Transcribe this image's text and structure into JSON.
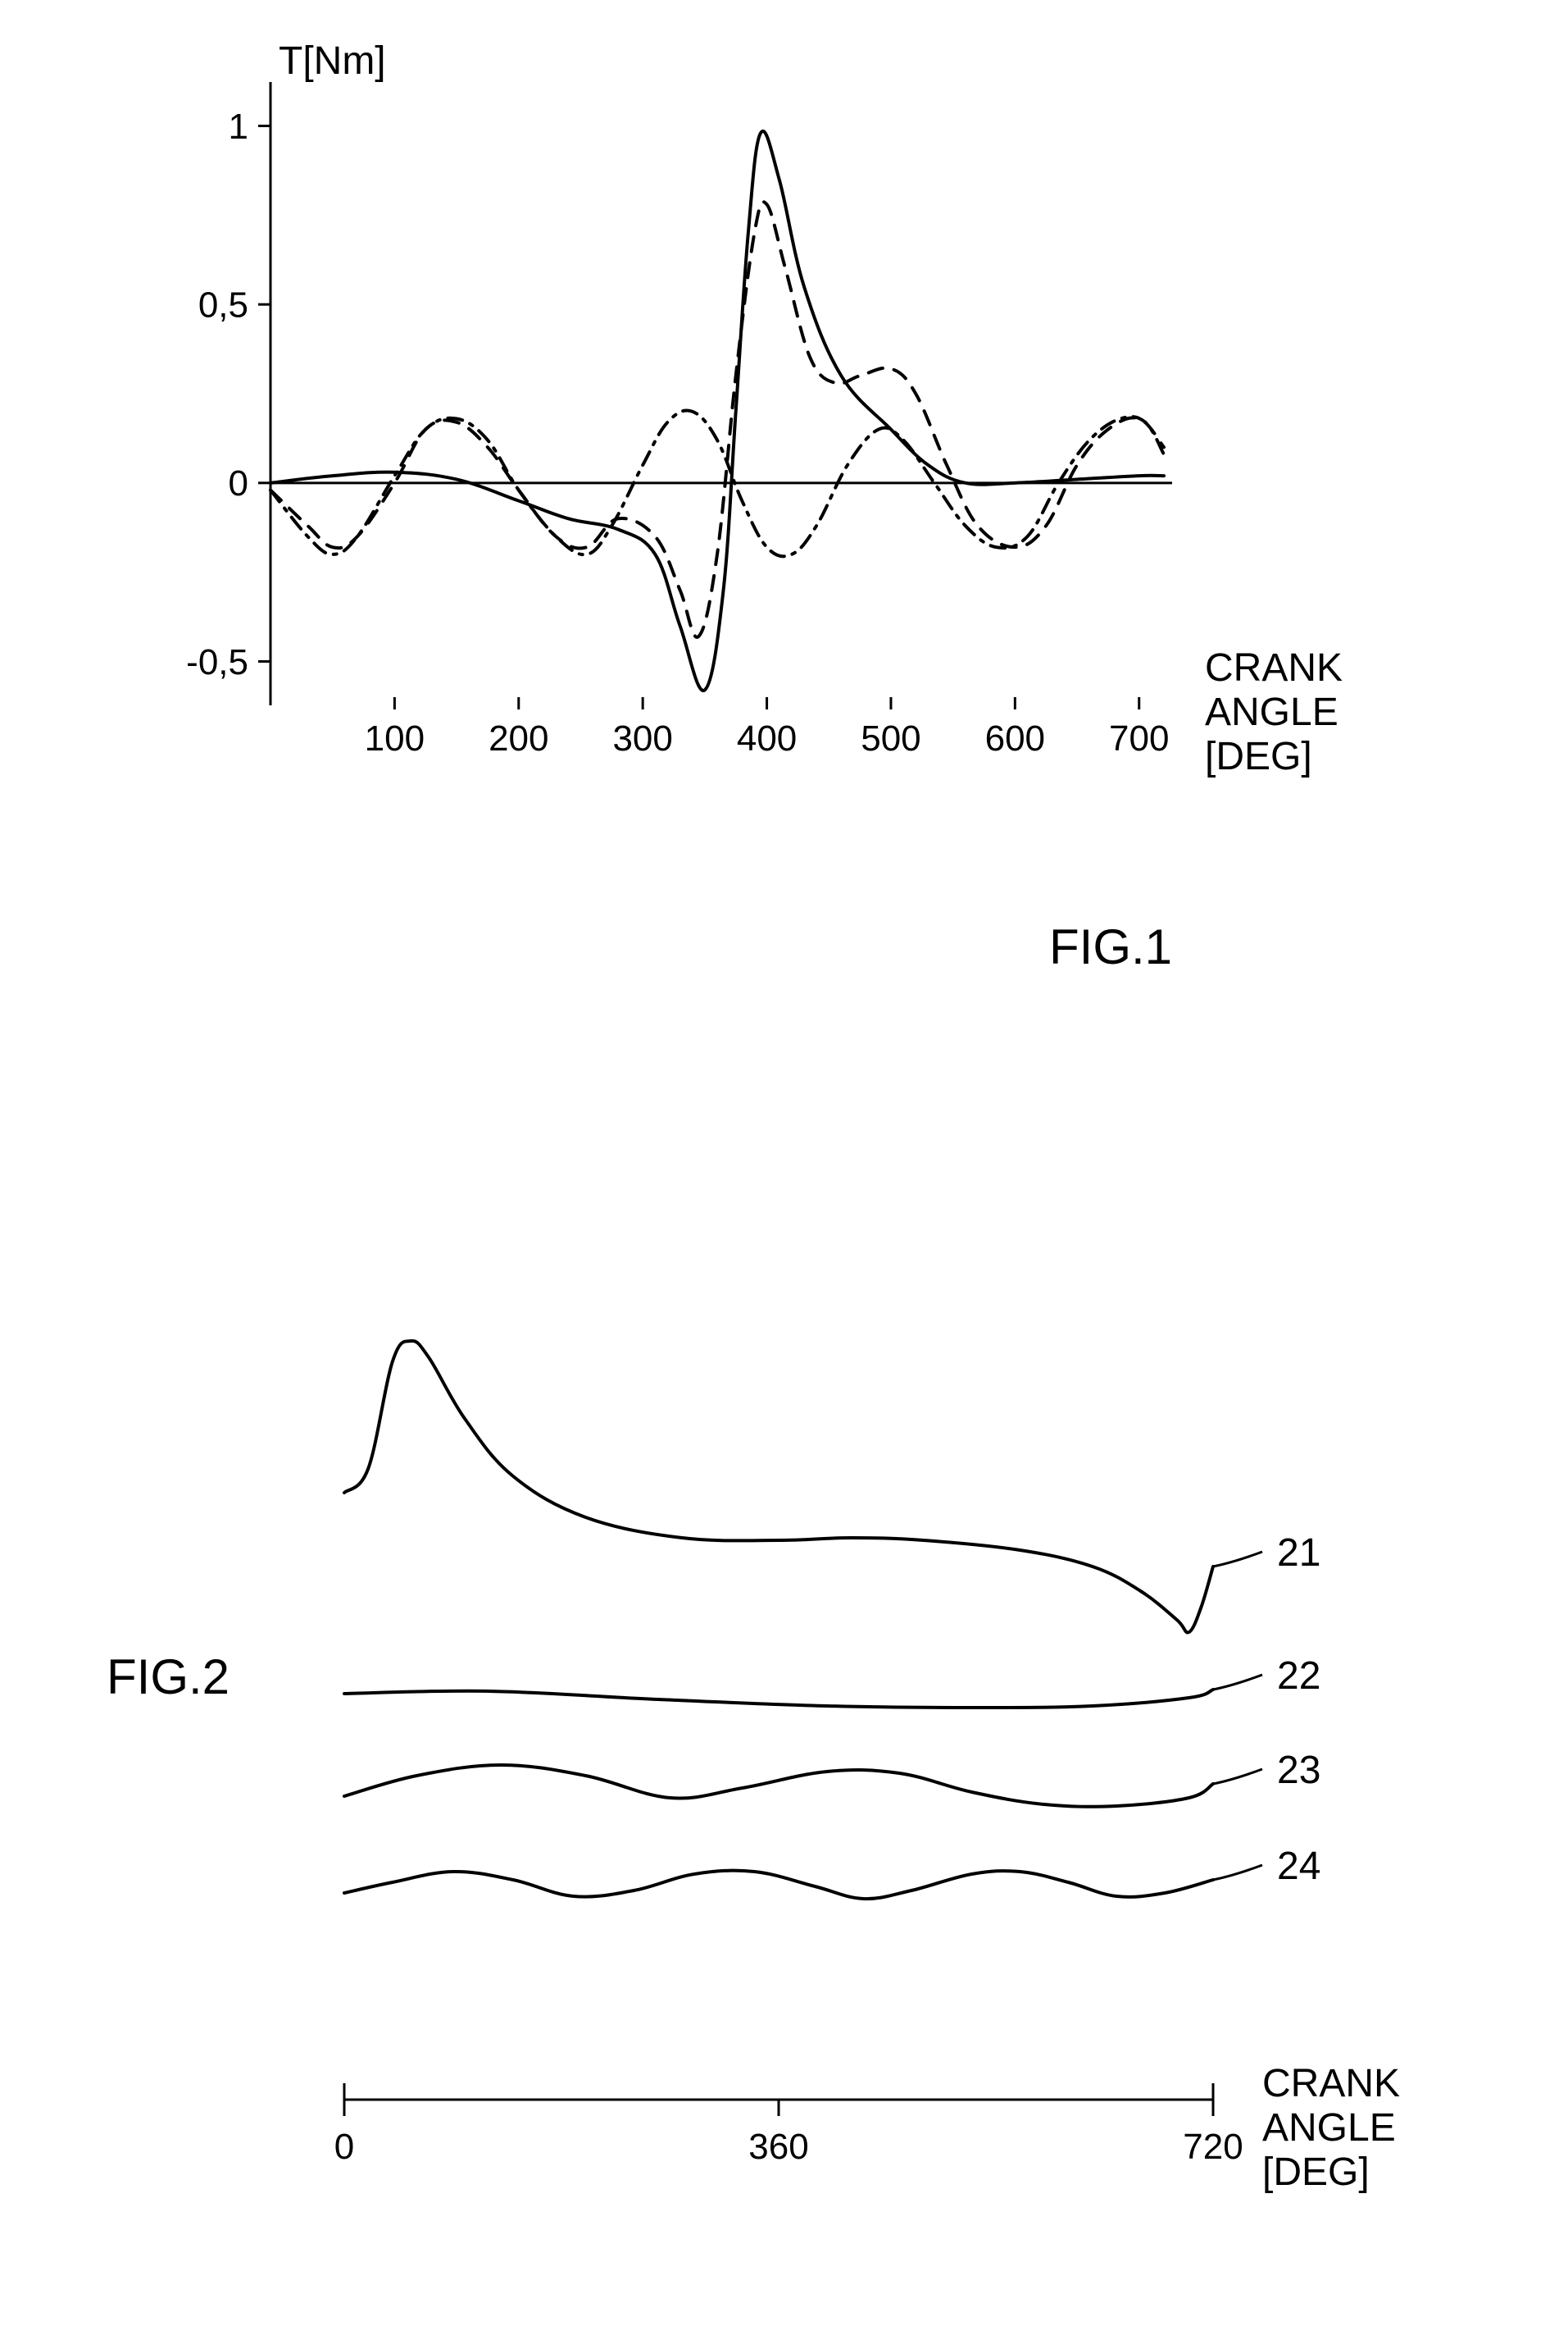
{
  "figure1": {
    "caption": "FIG.1",
    "caption_fontsize": 60,
    "y_axis_label": "T[Nm]",
    "x_axis_label_lines": [
      "CRANK",
      "ANGLE",
      "[DEG]"
    ],
    "label_fontsize": 48,
    "tick_fontsize": 44,
    "x_ticks": [
      100,
      200,
      300,
      400,
      500,
      600,
      700
    ],
    "y_ticks": [
      -0.5,
      0,
      0.5,
      1
    ],
    "y_tick_labels": [
      "-0,5",
      "0",
      "0,5",
      "1"
    ],
    "xlim": [
      0,
      720
    ],
    "ylim": [
      -0.6,
      1.1
    ],
    "line_color": "#000000",
    "line_width": 4,
    "axis_width": 3,
    "tick_length": 15,
    "series": {
      "solid": {
        "dash": "none",
        "points": [
          [
            0,
            0
          ],
          [
            50,
            0.02
          ],
          [
            100,
            0.03
          ],
          [
            150,
            0.01
          ],
          [
            200,
            -0.05
          ],
          [
            240,
            -0.1
          ],
          [
            280,
            -0.13
          ],
          [
            310,
            -0.2
          ],
          [
            330,
            -0.4
          ],
          [
            350,
            -0.58
          ],
          [
            365,
            -0.3
          ],
          [
            375,
            0.2
          ],
          [
            385,
            0.7
          ],
          [
            395,
            0.98
          ],
          [
            410,
            0.85
          ],
          [
            430,
            0.55
          ],
          [
            460,
            0.3
          ],
          [
            500,
            0.15
          ],
          [
            530,
            0.05
          ],
          [
            560,
            0.0
          ],
          [
            600,
            0.0
          ],
          [
            650,
            0.01
          ],
          [
            700,
            0.02
          ],
          [
            720,
            0.02
          ]
        ]
      },
      "dashed": {
        "dash": "18,14",
        "points": [
          [
            0,
            -0.02
          ],
          [
            30,
            -0.12
          ],
          [
            50,
            -0.18
          ],
          [
            70,
            -0.15
          ],
          [
            100,
            0.0
          ],
          [
            125,
            0.15
          ],
          [
            150,
            0.17
          ],
          [
            175,
            0.1
          ],
          [
            200,
            -0.02
          ],
          [
            230,
            -0.15
          ],
          [
            255,
            -0.18
          ],
          [
            280,
            -0.1
          ],
          [
            310,
            -0.15
          ],
          [
            330,
            -0.3
          ],
          [
            345,
            -0.43
          ],
          [
            360,
            -0.2
          ],
          [
            375,
            0.3
          ],
          [
            390,
            0.7
          ],
          [
            400,
            0.78
          ],
          [
            415,
            0.6
          ],
          [
            435,
            0.35
          ],
          [
            455,
            0.28
          ],
          [
            475,
            0.3
          ],
          [
            500,
            0.32
          ],
          [
            520,
            0.25
          ],
          [
            545,
            0.05
          ],
          [
            570,
            -0.12
          ],
          [
            600,
            -0.18
          ],
          [
            625,
            -0.12
          ],
          [
            650,
            0.05
          ],
          [
            675,
            0.15
          ],
          [
            700,
            0.18
          ],
          [
            720,
            0.1
          ]
        ]
      },
      "dashdot": {
        "dash": "18,10,4,10",
        "points": [
          [
            0,
            -0.02
          ],
          [
            30,
            -0.15
          ],
          [
            50,
            -0.2
          ],
          [
            70,
            -0.15
          ],
          [
            100,
            0.02
          ],
          [
            125,
            0.15
          ],
          [
            150,
            0.18
          ],
          [
            175,
            0.12
          ],
          [
            200,
            -0.02
          ],
          [
            230,
            -0.15
          ],
          [
            255,
            -0.2
          ],
          [
            275,
            -0.12
          ],
          [
            300,
            0.05
          ],
          [
            320,
            0.17
          ],
          [
            340,
            0.2
          ],
          [
            360,
            0.12
          ],
          [
            380,
            -0.05
          ],
          [
            400,
            -0.18
          ],
          [
            420,
            -0.2
          ],
          [
            440,
            -0.12
          ],
          [
            465,
            0.05
          ],
          [
            490,
            0.15
          ],
          [
            510,
            0.12
          ],
          [
            535,
            0.0
          ],
          [
            560,
            -0.12
          ],
          [
            585,
            -0.18
          ],
          [
            610,
            -0.15
          ],
          [
            635,
            0.0
          ],
          [
            660,
            0.12
          ],
          [
            685,
            0.18
          ],
          [
            705,
            0.17
          ],
          [
            720,
            0.08
          ]
        ]
      }
    }
  },
  "figure2": {
    "caption": "FIG.2",
    "caption_fontsize": 60,
    "x_axis_label_lines": [
      "CRANK",
      "ANGLE",
      "[DEG]"
    ],
    "label_fontsize": 48,
    "tick_fontsize": 44,
    "x_ticks": [
      0,
      360,
      720
    ],
    "xlim": [
      0,
      720
    ],
    "line_color": "#000000",
    "line_width": 4,
    "axis_width": 3,
    "tick_length": 20,
    "curve_labels": [
      "21",
      "22",
      "23",
      "24"
    ],
    "curve_label_fontsize": 48,
    "curves": {
      "21": {
        "baseline": 0,
        "points": [
          [
            0,
            100
          ],
          [
            20,
            130
          ],
          [
            40,
            260
          ],
          [
            55,
            285
          ],
          [
            70,
            265
          ],
          [
            100,
            190
          ],
          [
            140,
            120
          ],
          [
            200,
            70
          ],
          [
            280,
            45
          ],
          [
            360,
            42
          ],
          [
            420,
            45
          ],
          [
            480,
            42
          ],
          [
            560,
            30
          ],
          [
            620,
            10
          ],
          [
            660,
            -20
          ],
          [
            690,
            -55
          ],
          [
            700,
            -70
          ],
          [
            710,
            -40
          ],
          [
            720,
            10
          ]
        ]
      },
      "22": {
        "baseline": -150,
        "points": [
          [
            0,
            5
          ],
          [
            120,
            8
          ],
          [
            260,
            -2
          ],
          [
            400,
            -10
          ],
          [
            520,
            -12
          ],
          [
            620,
            -10
          ],
          [
            700,
            0
          ],
          [
            720,
            10
          ]
        ]
      },
      "23": {
        "baseline": -260,
        "points": [
          [
            0,
            -10
          ],
          [
            60,
            15
          ],
          [
            130,
            28
          ],
          [
            200,
            15
          ],
          [
            270,
            -12
          ],
          [
            330,
            0
          ],
          [
            400,
            20
          ],
          [
            460,
            18
          ],
          [
            520,
            -5
          ],
          [
            580,
            -20
          ],
          [
            640,
            -22
          ],
          [
            700,
            -12
          ],
          [
            720,
            5
          ]
        ]
      },
      "24": {
        "baseline": -380,
        "points": [
          [
            0,
            -8
          ],
          [
            40,
            5
          ],
          [
            90,
            18
          ],
          [
            140,
            8
          ],
          [
            190,
            -12
          ],
          [
            240,
            -5
          ],
          [
            290,
            15
          ],
          [
            340,
            18
          ],
          [
            390,
            0
          ],
          [
            430,
            -15
          ],
          [
            470,
            -5
          ],
          [
            520,
            15
          ],
          [
            560,
            18
          ],
          [
            600,
            5
          ],
          [
            640,
            -12
          ],
          [
            680,
            -8
          ],
          [
            720,
            8
          ]
        ]
      }
    }
  }
}
